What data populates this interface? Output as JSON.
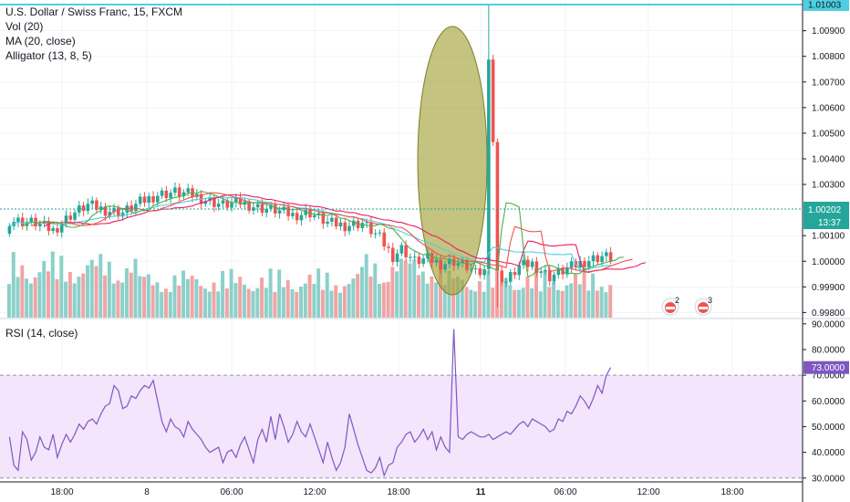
{
  "legend": {
    "symbol": "U.S. Dollar / Swiss Franc, 15, FXCM",
    "vol": "Vol (20)",
    "ma": "MA (20, close)",
    "alligator": "Alligator (13, 8, 5)"
  },
  "rsi_label": "RSI (14, close)",
  "chart_data": [
    {
      "type": "candlestick",
      "title": "U.S. Dollar / Swiss Franc, 15, FXCM",
      "price_ticks": [
        "1.00900",
        "1.00800",
        "1.00700",
        "1.00600",
        "1.00500",
        "1.00400",
        "1.00300",
        "1.00100",
        "1.00000",
        "0.99900",
        "0.99800"
      ],
      "ylim": [
        0.9978,
        1.0102
      ],
      "high_line": {
        "value": 1.01003,
        "label": "1.01003"
      },
      "current_price": {
        "value": 1.00202,
        "label": "1.00202",
        "timer": "13:37"
      },
      "x_ticks": [
        "18:00",
        "8",
        "06:00",
        "12:00",
        "18:00",
        "11",
        "06:00",
        "12:00",
        "18:00"
      ],
      "colors": {
        "up": "#26a69a",
        "down": "#ef5350",
        "ma": "#4dd0e1",
        "jaw": "#e91e63",
        "teeth": "#ef5350",
        "lips": "#4caf50",
        "highlight": "#a4a33a"
      },
      "price_path": [
        [
          0,
          1.0016
        ],
        [
          6,
          1.0015
        ],
        [
          10,
          1.0012
        ],
        [
          14,
          1.0018
        ],
        [
          18,
          1.0022
        ],
        [
          22,
          1.002
        ],
        [
          26,
          1.0019
        ],
        [
          30,
          1.0023
        ],
        [
          34,
          1.0026
        ],
        [
          38,
          1.0027
        ],
        [
          42,
          1.0026
        ],
        [
          45,
          1.0024
        ],
        [
          49,
          1.0022
        ],
        [
          53,
          1.0023
        ],
        [
          57,
          1.0021
        ],
        [
          61,
          1.002
        ],
        [
          65,
          1.0018
        ],
        [
          69,
          1.0019
        ],
        [
          73,
          1.0015
        ],
        [
          77,
          1.0014
        ],
        [
          81,
          1.0015
        ],
        [
          85,
          1.0009
        ],
        [
          88,
          1.0002
        ],
        [
          90,
          1.0005
        ],
        [
          93,
          1.0
        ],
        [
          96,
          1.0001
        ],
        [
          99,
          0.9999
        ],
        [
          102,
          1.0
        ],
        [
          105,
          0.9998
        ],
        [
          107,
          0.9995
        ],
        [
          109,
          0.9996
        ],
        [
          110,
          1.0081
        ],
        [
          111,
          1.0047
        ],
        [
          112,
          0.9995
        ],
        [
          114,
          0.9992
        ],
        [
          117,
          0.9998
        ],
        [
          120,
          0.9999
        ],
        [
          124,
          0.9994
        ],
        [
          128,
          0.9997
        ],
        [
          132,
          1.0
        ],
        [
          136,
          1.0002
        ],
        [
          140,
          1.0001
        ],
        [
          144,
          0.9999
        ],
        [
          148,
          1.0003
        ],
        [
          152,
          1.0005
        ],
        [
          155,
          1.0007
        ],
        [
          158,
          1.0011
        ],
        [
          161,
          1.0015
        ],
        [
          163,
          1.00202
        ]
      ]
    },
    {
      "type": "line",
      "title": "RSI (14, close)",
      "y_ticks": [
        "90.0000",
        "80.0000",
        "70.0000",
        "60.0000",
        "50.0000",
        "40.0000",
        "30.0000"
      ],
      "ylim": [
        28.5,
        91.0
      ],
      "band": [
        30,
        70
      ],
      "colors": {
        "line": "#7e57c2",
        "band": "#f3e5fc",
        "band_edge": "#9598a1"
      },
      "current": 73.0,
      "values": [
        46,
        35,
        33,
        48,
        45,
        37,
        40,
        46,
        42,
        41,
        47,
        38,
        43,
        47,
        44,
        47,
        51,
        49,
        52,
        53,
        51,
        55,
        58,
        59,
        66,
        64,
        57,
        58,
        62,
        61,
        64,
        66,
        65,
        68,
        60,
        52,
        48,
        53,
        50,
        49,
        46,
        52,
        49,
        47,
        45,
        42,
        40,
        41,
        42,
        36,
        40,
        41,
        38,
        43,
        46,
        41,
        36,
        45,
        49,
        44,
        54,
        45,
        55,
        50,
        44,
        47,
        52,
        48,
        46,
        51,
        46,
        41,
        36,
        44,
        38,
        33,
        36,
        42,
        55,
        49,
        43,
        38,
        33,
        32,
        34,
        38,
        31,
        35,
        36,
        42,
        44,
        47,
        48,
        44,
        46,
        49,
        45,
        48,
        41,
        46,
        42,
        40,
        88,
        46,
        45,
        47,
        48,
        47,
        46,
        46,
        47,
        45,
        46,
        47,
        48,
        47,
        49,
        51,
        52,
        50,
        53,
        52,
        51,
        50,
        48,
        49,
        53,
        52,
        56,
        55,
        58,
        62,
        60,
        57,
        61,
        66,
        63,
        70,
        73
      ]
    }
  ]
}
